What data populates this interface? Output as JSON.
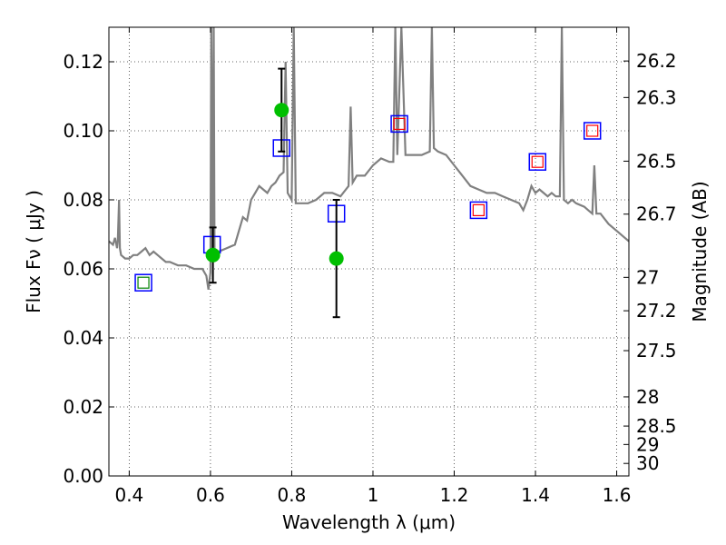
{
  "chart_data": {
    "type": "scatter",
    "xlabel": "Wavelength  λ (μm)",
    "ylabel": "Flux  Fν  ( μJy )",
    "y2label": "Magnitude (AB)",
    "xlim": [
      0.35,
      1.63
    ],
    "ylim": [
      0.0,
      0.13
    ],
    "x_ticks": [
      "0.4",
      "0.6",
      "0.8",
      "1",
      "1.2",
      "1.4",
      "1.6"
    ],
    "x_tick_values": [
      0.4,
      0.6,
      0.8,
      1.0,
      1.2,
      1.4,
      1.6
    ],
    "y_ticks": [
      "0.00",
      "0.02",
      "0.04",
      "0.06",
      "0.08",
      "0.10",
      "0.12"
    ],
    "y_tick_values": [
      0.0,
      0.02,
      0.04,
      0.06,
      0.08,
      0.1,
      0.12
    ],
    "mag_ticks": [
      "26.2",
      "26.3",
      "26.5",
      "26.7",
      "27",
      "27.2",
      "27.5",
      "28",
      "28.5",
      "29",
      "30"
    ],
    "mag_tick_values": [
      26.2,
      26.3,
      26.5,
      26.7,
      27.0,
      27.2,
      27.5,
      28.0,
      28.5,
      29.0,
      30.0
    ],
    "grid": true,
    "colors": {
      "spectrum": "#808080",
      "model_box": "#0000ff",
      "filter_red": "#ff0000",
      "filter_green": "#008000",
      "observed": "#00bf00",
      "errorbar": "#000000"
    },
    "series": [
      {
        "type": "line",
        "points": [
          [
            0.35,
            0.068
          ],
          [
            0.36,
            0.067
          ],
          [
            0.365,
            0.069
          ],
          [
            0.37,
            0.066
          ],
          [
            0.372,
            0.068
          ],
          [
            0.375,
            0.08
          ],
          [
            0.377,
            0.066
          ],
          [
            0.38,
            0.064
          ],
          [
            0.39,
            0.063
          ],
          [
            0.4,
            0.063
          ],
          [
            0.41,
            0.064
          ],
          [
            0.42,
            0.064
          ],
          [
            0.43,
            0.065
          ],
          [
            0.44,
            0.066
          ],
          [
            0.45,
            0.064
          ],
          [
            0.46,
            0.065
          ],
          [
            0.47,
            0.064
          ],
          [
            0.48,
            0.063
          ],
          [
            0.49,
            0.062
          ],
          [
            0.5,
            0.062
          ],
          [
            0.52,
            0.061
          ],
          [
            0.54,
            0.061
          ],
          [
            0.56,
            0.06
          ],
          [
            0.58,
            0.06
          ],
          [
            0.59,
            0.058
          ],
          [
            0.595,
            0.054
          ],
          [
            0.6,
            0.059
          ],
          [
            0.602,
            0.13
          ],
          [
            0.605,
            0.062
          ],
          [
            0.608,
            0.13
          ],
          [
            0.61,
            0.065
          ],
          [
            0.62,
            0.065
          ],
          [
            0.64,
            0.066
          ],
          [
            0.66,
            0.067
          ],
          [
            0.68,
            0.075
          ],
          [
            0.69,
            0.074
          ],
          [
            0.7,
            0.08
          ],
          [
            0.71,
            0.082
          ],
          [
            0.72,
            0.084
          ],
          [
            0.73,
            0.083
          ],
          [
            0.74,
            0.082
          ],
          [
            0.75,
            0.084
          ],
          [
            0.76,
            0.085
          ],
          [
            0.77,
            0.087
          ],
          [
            0.78,
            0.088
          ],
          [
            0.785,
            0.12
          ],
          [
            0.79,
            0.082
          ],
          [
            0.8,
            0.08
          ],
          [
            0.805,
            0.13
          ],
          [
            0.81,
            0.079
          ],
          [
            0.82,
            0.079
          ],
          [
            0.84,
            0.079
          ],
          [
            0.86,
            0.08
          ],
          [
            0.88,
            0.082
          ],
          [
            0.9,
            0.082
          ],
          [
            0.92,
            0.081
          ],
          [
            0.94,
            0.084
          ],
          [
            0.945,
            0.107
          ],
          [
            0.95,
            0.085
          ],
          [
            0.96,
            0.087
          ],
          [
            0.98,
            0.087
          ],
          [
            1.0,
            0.09
          ],
          [
            1.02,
            0.092
          ],
          [
            1.04,
            0.091
          ],
          [
            1.05,
            0.091
          ],
          [
            1.055,
            0.13
          ],
          [
            1.06,
            0.093
          ],
          [
            1.07,
            0.13
          ],
          [
            1.08,
            0.093
          ],
          [
            1.1,
            0.093
          ],
          [
            1.12,
            0.093
          ],
          [
            1.14,
            0.094
          ],
          [
            1.145,
            0.13
          ],
          [
            1.15,
            0.095
          ],
          [
            1.16,
            0.094
          ],
          [
            1.18,
            0.093
          ],
          [
            1.2,
            0.09
          ],
          [
            1.22,
            0.087
          ],
          [
            1.24,
            0.084
          ],
          [
            1.26,
            0.083
          ],
          [
            1.28,
            0.082
          ],
          [
            1.3,
            0.082
          ],
          [
            1.32,
            0.081
          ],
          [
            1.34,
            0.08
          ],
          [
            1.36,
            0.079
          ],
          [
            1.37,
            0.077
          ],
          [
            1.38,
            0.08
          ],
          [
            1.39,
            0.084
          ],
          [
            1.4,
            0.082
          ],
          [
            1.41,
            0.083
          ],
          [
            1.42,
            0.082
          ],
          [
            1.43,
            0.081
          ],
          [
            1.44,
            0.082
          ],
          [
            1.45,
            0.081
          ],
          [
            1.46,
            0.081
          ],
          [
            1.465,
            0.13
          ],
          [
            1.47,
            0.08
          ],
          [
            1.48,
            0.079
          ],
          [
            1.49,
            0.08
          ],
          [
            1.5,
            0.079
          ],
          [
            1.52,
            0.078
          ],
          [
            1.53,
            0.077
          ],
          [
            1.54,
            0.076
          ],
          [
            1.545,
            0.09
          ],
          [
            1.55,
            0.076
          ],
          [
            1.56,
            0.076
          ],
          [
            1.58,
            0.073
          ],
          [
            1.6,
            0.071
          ],
          [
            1.62,
            0.069
          ],
          [
            1.63,
            0.068
          ]
        ]
      },
      {
        "type": "model-photometry",
        "points": [
          [
            0.435,
            0.056
          ],
          [
            0.604,
            0.067
          ],
          [
            0.775,
            0.095
          ],
          [
            0.91,
            0.076
          ],
          [
            1.065,
            0.102
          ],
          [
            1.26,
            0.077
          ],
          [
            1.405,
            0.091
          ],
          [
            1.54,
            0.1
          ]
        ],
        "filter_colors": [
          "filter_green",
          "",
          "",
          "",
          "filter_red",
          "filter_red",
          "filter_red",
          "filter_red"
        ]
      },
      {
        "type": "observed-with-errors",
        "points": [
          [
            0.606,
            0.064,
            0.056,
            0.072
          ],
          [
            0.775,
            0.106,
            0.094,
            0.118
          ],
          [
            0.91,
            0.063,
            0.046,
            0.08
          ]
        ]
      }
    ]
  }
}
